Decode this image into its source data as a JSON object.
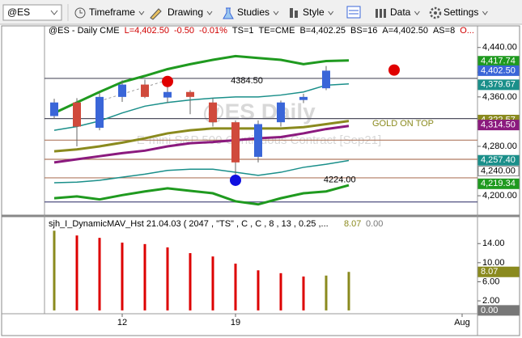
{
  "toolbar": {
    "symbol": "@ES",
    "items": [
      "Timeframe",
      "Drawing",
      "Studies",
      "Style",
      "Data",
      "Settings"
    ]
  },
  "chart_data": [
    {
      "type": "candlestick",
      "quote": [
        {
          "text": "@ES - Daily  CME",
          "color": "#000000"
        },
        {
          "text": "L=4,402.50",
          "color": "#d00000"
        },
        {
          "text": "-0.50",
          "color": "#d00000"
        },
        {
          "text": "-0.01%",
          "color": "#d00000"
        },
        {
          "text": "TS=1",
          "color": "#000000"
        },
        {
          "text": "TE=CME",
          "color": "#000000"
        },
        {
          "text": "B=4,402.25",
          "color": "#000000"
        },
        {
          "text": "BS=16",
          "color": "#000000"
        },
        {
          "text": "A=4,402.50",
          "color": "#000000"
        },
        {
          "text": "AS=8",
          "color": "#000000"
        },
        {
          "text": "O...",
          "color": "#d00000"
        }
      ],
      "watermark": "@ES Daily",
      "watermark_subtitle": "E-mini S&P 500 Continuous Contract [Sep21]",
      "annotation": "GOLD ON TOP",
      "categories": [
        null,
        null,
        null,
        "12",
        null,
        null,
        null,
        null,
        "19",
        null,
        null,
        null,
        null,
        null,
        null,
        null,
        null,
        null,
        "Aug"
      ],
      "open": [
        4329,
        4351,
        4310,
        4360,
        4380,
        4359,
        4368,
        4351,
        4319,
        4263,
        4319,
        4355,
        4374,
        null,
        null,
        null,
        null,
        null,
        null
      ],
      "high": [
        4357,
        4358,
        4367,
        4387,
        4388,
        4393,
        4371,
        4358,
        4322,
        4322,
        4354,
        4365,
        4410,
        null,
        null,
        null,
        null,
        null,
        null
      ],
      "low": [
        4325,
        4280,
        4306,
        4352,
        4358,
        4350,
        4332,
        4312,
        4230,
        4254,
        4312,
        4350,
        4371,
        null,
        null,
        null,
        null,
        null,
        null
      ],
      "close": [
        4351,
        4312,
        4360,
        4380,
        4360,
        4368,
        4360,
        4319,
        4254,
        4316,
        4351,
        4360,
        4402.5,
        null,
        null,
        null,
        null,
        null,
        null
      ],
      "up_color": "#3a66d8",
      "down_color": "#d04a3c",
      "lines": [
        {
          "color": "#1f9a1f",
          "width": 3,
          "values": [
            4334,
            4351,
            4368,
            4384,
            4394,
            4405,
            4413,
            4420,
            4426,
            4423,
            4420,
            4413,
            4418,
            4419,
            null,
            null,
            null,
            null,
            null
          ]
        },
        {
          "color": "#1a8f8a",
          "width": 1.5,
          "values": [
            4306,
            4312,
            4321,
            4334,
            4345,
            4351,
            4355,
            4358,
            4360,
            4360,
            4363,
            4368,
            4379,
            4381,
            null,
            null,
            null,
            null,
            null
          ]
        },
        {
          "color": "#8a8a1e",
          "width": 3,
          "values": [
            4272,
            4275,
            4280,
            4286,
            4293,
            4301,
            4306,
            4309,
            4309,
            4309,
            4309,
            4311,
            4316,
            4321,
            null,
            null,
            null,
            null,
            null
          ]
        },
        {
          "color": "#8b1a7e",
          "width": 3,
          "values": [
            4254,
            4259,
            4264,
            4269,
            4273,
            4280,
            4285,
            4287,
            4290,
            4293,
            4295,
            4301,
            4308,
            4313,
            null,
            null,
            null,
            null,
            null
          ]
        },
        {
          "color": "#1a8f8a",
          "width": 1.5,
          "values": [
            4221,
            4222,
            4225,
            4230,
            4235,
            4241,
            4243,
            4243,
            4238,
            4233,
            4238,
            4246,
            4251,
            4257,
            null,
            null,
            null,
            null,
            null
          ]
        },
        {
          "color": "#1f9a1f",
          "width": 3,
          "values": [
            4196,
            4199,
            4194,
            4201,
            4207,
            4212,
            4208,
            4204,
            4191,
            4186,
            4196,
            4204,
            4207,
            4217,
            null,
            null,
            null,
            null,
            null
          ]
        }
      ],
      "markers": [
        {
          "color": "#e00000",
          "values": [
            null,
            null,
            null,
            null,
            null,
            4385,
            null,
            null,
            null,
            null,
            null,
            null,
            null,
            null,
            null,
            4403.5,
            null,
            null,
            null
          ]
        },
        {
          "color": "#1010e0",
          "values": [
            null,
            null,
            null,
            null,
            null,
            null,
            null,
            null,
            4225,
            null,
            null,
            null,
            null,
            null,
            null,
            null,
            null,
            null,
            null
          ]
        }
      ],
      "levels": [
        {
          "value": 4390,
          "color": "#505060"
        },
        {
          "value": 4325,
          "color": "#505060"
        },
        {
          "value": 4290,
          "color": "#b07a60"
        },
        {
          "value": 4259,
          "color": "#b07a60"
        },
        {
          "value": 4229,
          "color": "#b07a60"
        },
        {
          "value": 4190,
          "color": "#505080"
        }
      ],
      "price_labels": [
        {
          "value": 4384.5,
          "label": "4384.50"
        },
        {
          "value": 4224,
          "label": "4224.00"
        }
      ],
      "flags": [
        {
          "value": 4417.74,
          "label": "4,417.74",
          "color": "#1f9a1f"
        },
        {
          "value": 4402.5,
          "label": "4,402.50",
          "color": "#3a66d8"
        },
        {
          "value": 4379.67,
          "label": "4,379.67",
          "color": "#1a8f8a"
        },
        {
          "value": 4322.57,
          "label": "4,322.57",
          "color": "#8a8a1e"
        },
        {
          "value": 4314.5,
          "label": "4,314.50",
          "color": "#8b1a7e"
        },
        {
          "value": 4257.4,
          "label": "4,257.40",
          "color": "#1a8f8a"
        },
        {
          "value": 4240,
          "label": "4,240.00",
          "color": "#ffffff"
        },
        {
          "value": 4219.34,
          "label": "4,219.34",
          "color": "#1f9a1f"
        }
      ],
      "ylim": [
        4170,
        4475
      ],
      "yticks": [
        {
          "value": 4200,
          "label": "4,200.00"
        },
        {
          "value": 4240,
          "label": "4,240.00"
        },
        {
          "value": 4280,
          "label": "4,280.00"
        },
        {
          "value": 4320,
          "label": "4,320.00"
        },
        {
          "value": 4360,
          "label": "4,360.00"
        },
        {
          "value": 4400,
          "label": "4,400.00"
        },
        {
          "value": 4440,
          "label": "4,440.00"
        }
      ]
    },
    {
      "type": "bar",
      "title": "sjh_I_DynamicMAV_Hst 21.04.03 ( 2047 , \"TS\" , C , C ,  8 , 13 , 0.25 ,...",
      "values": [
        16.7,
        15.7,
        15.2,
        14.2,
        13.9,
        13.2,
        12.0,
        11.3,
        9.8,
        8.4,
        7.8,
        7.1,
        7.3,
        8.07,
        null,
        null,
        null,
        null,
        null
      ],
      "colors": [
        "#8a8a1e",
        "#dd0000",
        "#dd0000",
        "#dd0000",
        "#dd0000",
        "#dd0000",
        "#dd0000",
        "#dd0000",
        "#dd0000",
        "#dd0000",
        "#dd0000",
        "#dd0000",
        "#8a8a1e",
        "#8a8a1e",
        null,
        null,
        null,
        null,
        null
      ],
      "flags": [
        {
          "value": 8.07,
          "label": "8.07",
          "color": "#8a8a1e"
        },
        {
          "value": 0,
          "label": "0.00",
          "color": "#777777"
        }
      ],
      "ylim": [
        -0.7,
        17.6
      ],
      "yticks": [
        {
          "value": 2,
          "label": "2.00"
        },
        {
          "value": 6,
          "label": "6.00"
        },
        {
          "value": 10,
          "label": "10.00"
        },
        {
          "value": 14,
          "label": "14.00"
        }
      ]
    }
  ]
}
